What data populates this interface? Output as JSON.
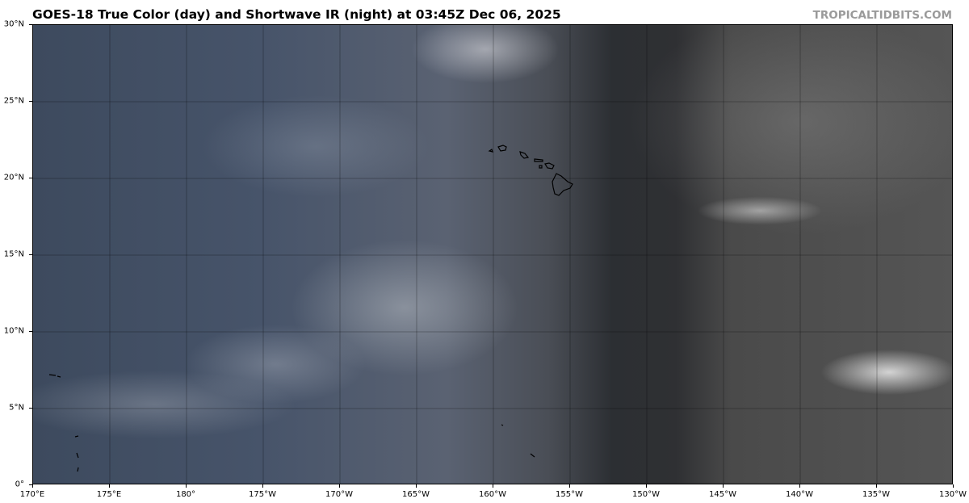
{
  "header": {
    "title": "GOES-18 True Color (day) and Shortwave IR (night) at 03:45Z Dec 06, 2025",
    "credit": "TROPICALTIDBITS.COM"
  },
  "map": {
    "type": "satellite imagery",
    "satellite": "GOES-18",
    "longitude_ticks": [
      "170°E",
      "175°E",
      "180°",
      "175°W",
      "170°W",
      "165°W",
      "160°W",
      "155°W",
      "150°W",
      "145°W",
      "140°W",
      "135°W",
      "130°W"
    ],
    "latitude_ticks": [
      "30°N",
      "25°N",
      "20°N",
      "15°N",
      "10°N",
      "5°N",
      "0°"
    ],
    "extent": {
      "lon_west": "170°E",
      "lon_east": "130°W",
      "lat_south": "0°",
      "lat_north": "30°N"
    },
    "gridlines": true,
    "colors": {
      "day_ocean": "#45526a",
      "night_ocean": "#505050",
      "terminator": "#2c2f33",
      "coastline": "#000000",
      "credit": "#9a9a9a"
    }
  }
}
